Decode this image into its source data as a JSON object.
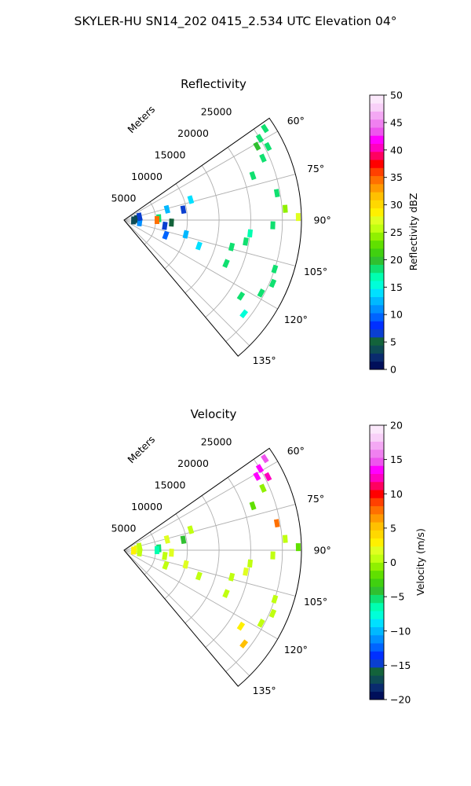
{
  "figure": {
    "suptitle": "SKYLER-HU  SN14_202  0415_2.534 UTC Elevation 04°"
  },
  "chart_data": [
    {
      "type": "polar-sector",
      "title": "Reflectivity",
      "radial_label": "Meters",
      "r_ticks": [
        5000,
        10000,
        15000,
        20000,
        25000
      ],
      "r_max": 28000,
      "theta_ticks": [
        "60°",
        "75°",
        "90°",
        "105°",
        "120°",
        "135°"
      ],
      "theta_range_deg": [
        55,
        140
      ],
      "grid": true,
      "colorbar": {
        "label": "Reflectivity dBZ",
        "range": [
          0,
          50
        ],
        "ticks": [
          "0",
          "5",
          "10",
          "15",
          "20",
          "25",
          "30",
          "35",
          "40",
          "45",
          "50"
        ],
        "colors": [
          "#000f5a",
          "#0a2b6e",
          "#0e4b54",
          "#13633b",
          "#0a3fd0",
          "#0030ff",
          "#0064ff",
          "#0090ff",
          "#00b8ff",
          "#00e0ff",
          "#00ffd8",
          "#00ffb0",
          "#10e070",
          "#30c030",
          "#40d010",
          "#60e000",
          "#90f000",
          "#c0ff10",
          "#e0ff20",
          "#fff000",
          "#ffd800",
          "#ffc000",
          "#ff9900",
          "#ff7000",
          "#ff4000",
          "#ff0000",
          "#ff0060",
          "#ff00c0",
          "#ff00ff",
          "#ee55ee",
          "#f080f0",
          "#f4a8f4",
          "#f8d0f8",
          "#fbe8fb"
        ]
      },
      "echoes": [
        {
          "azimuth": 57,
          "range": 26500,
          "value": 19
        },
        {
          "azimuth": 59,
          "range": 25000,
          "value": 18
        },
        {
          "azimuth": 61,
          "range": 24000,
          "value": 20
        },
        {
          "azimuth": 63,
          "range": 25500,
          "value": 18
        },
        {
          "azimuth": 66,
          "range": 24000,
          "value": 19
        },
        {
          "azimuth": 71,
          "range": 21500,
          "value": 19
        },
        {
          "azimuth": 73,
          "range": 11000,
          "value": 14
        },
        {
          "azimuth": 80,
          "range": 24500,
          "value": 18
        },
        {
          "azimuth": 86,
          "range": 25500,
          "value": 24
        },
        {
          "azimuth": 89,
          "range": 27500,
          "value": 27
        },
        {
          "azimuth": 92,
          "range": 23500,
          "value": 18
        },
        {
          "azimuth": 96,
          "range": 20000,
          "value": 17
        },
        {
          "azimuth": 100,
          "range": 19500,
          "value": 18
        },
        {
          "azimuth": 104,
          "range": 17500,
          "value": 18
        },
        {
          "azimuth": 108,
          "range": 25000,
          "value": 18
        },
        {
          "azimuth": 113,
          "range": 25500,
          "value": 18
        },
        {
          "azimuth": 118,
          "range": 24500,
          "value": 18
        },
        {
          "azimuth": 123,
          "range": 22000,
          "value": 18
        },
        {
          "azimuth": 128,
          "range": 24000,
          "value": 16
        },
        {
          "azimuth": 76,
          "range": 7000,
          "value": 12
        },
        {
          "azimuth": 80,
          "range": 9500,
          "value": 6
        },
        {
          "azimuth": 87,
          "range": 5500,
          "value": 18
        },
        {
          "azimuth": 90,
          "range": 5200,
          "value": 35
        },
        {
          "azimuth": 93,
          "range": 7500,
          "value": 5
        },
        {
          "azimuth": 98,
          "range": 6500,
          "value": 7
        },
        {
          "azimuth": 103,
          "range": 10000,
          "value": 12
        },
        {
          "azimuth": 109,
          "range": 12500,
          "value": 14
        },
        {
          "azimuth": 113,
          "range": 17500,
          "value": 18
        },
        {
          "azimuth": 110,
          "range": 7000,
          "value": 9
        },
        {
          "azimuth": 85,
          "range": 2000,
          "value": 3
        },
        {
          "azimuth": 92,
          "range": 1500,
          "value": 4
        },
        {
          "azimuth": 98,
          "range": 2500,
          "value": 11
        },
        {
          "azimuth": 78,
          "range": 2500,
          "value": 7
        }
      ]
    },
    {
      "type": "polar-sector",
      "title": "Velocity",
      "radial_label": "Meters",
      "r_ticks": [
        5000,
        10000,
        15000,
        20000,
        25000
      ],
      "r_max": 28000,
      "theta_ticks": [
        "60°",
        "75°",
        "90°",
        "105°",
        "120°",
        "135°"
      ],
      "theta_range_deg": [
        55,
        140
      ],
      "grid": true,
      "colorbar": {
        "label": "Velocity (m/s)",
        "range": [
          -20,
          20
        ],
        "ticks": [
          "−20",
          "−15",
          "−10",
          "−5",
          "0",
          "5",
          "10",
          "15",
          "20"
        ],
        "colors": [
          "#000f5a",
          "#0a2b6e",
          "#0e4b54",
          "#13633b",
          "#0a3fd0",
          "#0030ff",
          "#0064ff",
          "#0090ff",
          "#00b8ff",
          "#00e0ff",
          "#00ffd8",
          "#00ffb0",
          "#10e070",
          "#30c030",
          "#40d010",
          "#60e000",
          "#90f000",
          "#c0ff10",
          "#e0ff20",
          "#fff000",
          "#ffd800",
          "#ffc000",
          "#ff9900",
          "#ff7000",
          "#ff4000",
          "#ff0000",
          "#ff0060",
          "#ff00c0",
          "#ff00ff",
          "#ee55ee",
          "#f080f0",
          "#f4a8f4",
          "#f8d0f8",
          "#fbe8fb"
        ]
      },
      "echoes": [
        {
          "azimuth": 57,
          "range": 26500,
          "value": 15
        },
        {
          "azimuth": 59,
          "range": 25000,
          "value": 14
        },
        {
          "azimuth": 61,
          "range": 24000,
          "value": 13
        },
        {
          "azimuth": 63,
          "range": 25500,
          "value": 12
        },
        {
          "azimuth": 66,
          "range": 24000,
          "value": -1
        },
        {
          "azimuth": 71,
          "range": 21500,
          "value": -2
        },
        {
          "azimuth": 73,
          "range": 11000,
          "value": 1
        },
        {
          "azimuth": 80,
          "range": 24500,
          "value": 8
        },
        {
          "azimuth": 86,
          "range": 25500,
          "value": 1
        },
        {
          "azimuth": 89,
          "range": 27500,
          "value": -2
        },
        {
          "azimuth": 92,
          "range": 23500,
          "value": 1
        },
        {
          "azimuth": 96,
          "range": 20000,
          "value": 0
        },
        {
          "azimuth": 100,
          "range": 19500,
          "value": 2
        },
        {
          "azimuth": 104,
          "range": 17500,
          "value": 1
        },
        {
          "azimuth": 108,
          "range": 25000,
          "value": 1
        },
        {
          "azimuth": 113,
          "range": 25500,
          "value": 0
        },
        {
          "azimuth": 118,
          "range": 24500,
          "value": 1
        },
        {
          "azimuth": 123,
          "range": 22000,
          "value": 3
        },
        {
          "azimuth": 128,
          "range": 24000,
          "value": 5
        },
        {
          "azimuth": 76,
          "range": 7000,
          "value": 2
        },
        {
          "azimuth": 80,
          "range": 9500,
          "value": -4
        },
        {
          "azimuth": 87,
          "range": 5500,
          "value": -5
        },
        {
          "azimuth": 90,
          "range": 5200,
          "value": -6
        },
        {
          "azimuth": 93,
          "range": 7500,
          "value": 2
        },
        {
          "azimuth": 98,
          "range": 6500,
          "value": 1
        },
        {
          "azimuth": 103,
          "range": 10000,
          "value": 2
        },
        {
          "azimuth": 109,
          "range": 12500,
          "value": 1
        },
        {
          "azimuth": 113,
          "range": 17500,
          "value": 0
        },
        {
          "azimuth": 110,
          "range": 7000,
          "value": 1
        },
        {
          "azimuth": 85,
          "range": 2000,
          "value": 2
        },
        {
          "azimuth": 92,
          "range": 1500,
          "value": 3
        },
        {
          "azimuth": 98,
          "range": 2500,
          "value": 1
        },
        {
          "azimuth": 78,
          "range": 2500,
          "value": 0
        }
      ]
    }
  ]
}
